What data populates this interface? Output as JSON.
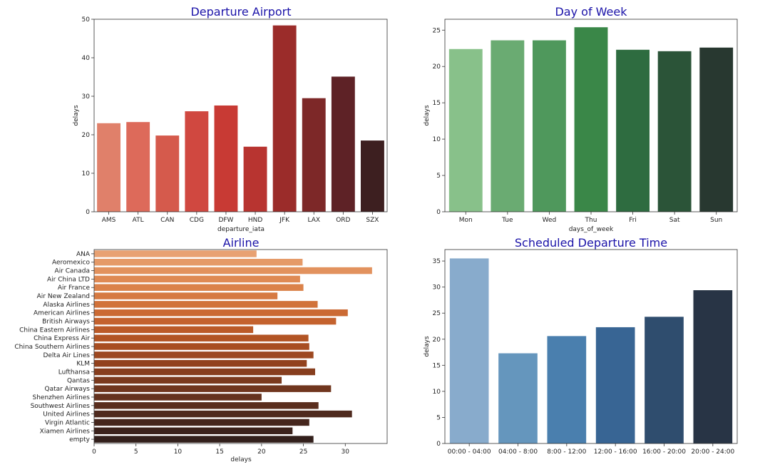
{
  "chart_data": [
    {
      "type": "bar",
      "title": "Departure Airport",
      "xlabel": "departure_iata",
      "ylabel": "delays",
      "orientation": "vertical",
      "categories": [
        "AMS",
        "ATL",
        "CAN",
        "CDG",
        "DFW",
        "HND",
        "JFK",
        "LAX",
        "ORD",
        "SZX"
      ],
      "values": [
        23.0,
        23.3,
        19.8,
        26.1,
        27.6,
        16.9,
        48.4,
        29.5,
        35.1,
        18.5
      ],
      "ylim": [
        0,
        50
      ],
      "ticks": [
        0,
        10,
        20,
        30,
        40,
        50
      ],
      "colors": [
        "#e0806a",
        "#dd6a5a",
        "#d55a4c",
        "#d04840",
        "#c83a34",
        "#b83430",
        "#9b2c2a",
        "#7d2828",
        "#5e2226",
        "#3d1f20"
      ]
    },
    {
      "type": "bar",
      "title": "Day of Week",
      "xlabel": "days_of_week",
      "ylabel": "delays",
      "orientation": "vertical",
      "categories": [
        "Mon",
        "Tue",
        "Wed",
        "Thu",
        "Fri",
        "Sat",
        "Sun"
      ],
      "values": [
        22.4,
        23.6,
        23.6,
        25.4,
        22.3,
        22.1,
        22.6
      ],
      "ylim": [
        0,
        26.5
      ],
      "ticks": [
        0,
        5,
        10,
        15,
        20,
        25
      ],
      "colors": [
        "#88c18a",
        "#6aab72",
        "#4f985c",
        "#3a8748",
        "#2e6c40",
        "#2b5438",
        "#283830"
      ]
    },
    {
      "type": "bar",
      "title": "Airline",
      "xlabel": "delays",
      "ylabel": "",
      "orientation": "horizontal",
      "categories": [
        "ANA",
        "Aeromexico",
        "Air Canada",
        "Air China LTD",
        "Air France",
        "Air New Zealand",
        "Alaska Airlines",
        "American Airlines",
        "British Airways",
        "China Eastern Airlines",
        "China Express Air",
        "China Southern Airlines",
        "Delta Air Lines",
        "KLM",
        "Lufthansa",
        "Qantas",
        "Qatar Airways",
        "Shenzhen Airlines",
        "Southwest Airlines",
        "United Airlines",
        "Virgin Atlantic",
        "Xiamen Airlines",
        "empty"
      ],
      "values": [
        19.4,
        24.9,
        33.2,
        24.6,
        25.0,
        21.9,
        26.7,
        30.3,
        28.9,
        19.0,
        25.6,
        25.7,
        26.2,
        25.4,
        26.4,
        22.4,
        28.3,
        20.0,
        26.8,
        30.8,
        25.7,
        23.7,
        26.2
      ],
      "xlim": [
        0,
        35
      ],
      "ticks": [
        0,
        5,
        10,
        15,
        20,
        25,
        30
      ],
      "colors": [
        "#e8a172",
        "#e59a68",
        "#e2925e",
        "#df8a54",
        "#db824a",
        "#d67a42",
        "#d1723a",
        "#cb6a34",
        "#c4622e",
        "#bb5a28",
        "#b25424",
        "#a84e22",
        "#9d4820",
        "#92421e",
        "#873e1e",
        "#7b3a1e",
        "#70361e",
        "#65321e",
        "#5a2e1e",
        "#4f2a1e",
        "#45261d",
        "#3b221c",
        "#321f1b"
      ]
    },
    {
      "type": "bar",
      "title": "Scheduled Departure Time",
      "xlabel": "",
      "ylabel": "delays",
      "orientation": "vertical",
      "categories": [
        "00:00 - 04:00",
        "04:00 - 8:00",
        "8:00 - 12:00",
        "12:00 - 16:00",
        "16:00 - 20:00",
        "20:00 - 24:00"
      ],
      "values": [
        35.5,
        17.3,
        20.6,
        22.3,
        24.3,
        29.4
      ],
      "ylim": [
        0,
        37.2
      ],
      "ticks": [
        0,
        5,
        10,
        15,
        20,
        25,
        30,
        35
      ],
      "colors": [
        "#88abcc",
        "#6596bd",
        "#4a7fae",
        "#386594",
        "#2f4d6e",
        "#283445"
      ]
    }
  ]
}
